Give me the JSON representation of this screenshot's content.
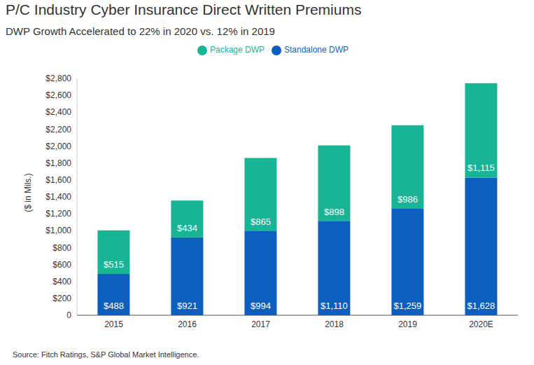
{
  "chart_data": {
    "type": "bar",
    "title": "P/C Industry Cyber Insurance Direct Written Premiums",
    "subtitle": "DWP Growth Accelerated to 22% in 2020 vs. 12% in 2019",
    "y_label": "($ in Mils.)",
    "source": "Source: Fitch Ratings, S&P Global Market Intelligence.",
    "categories": [
      "2015",
      "2016",
      "2017",
      "2018",
      "2019",
      "2020E"
    ],
    "series": [
      {
        "name": "Standalone DWP",
        "color": "#0d5fbf",
        "values": [
          488,
          921,
          994,
          1110,
          1259,
          1628
        ],
        "value_labels": [
          "$488",
          "$921",
          "$994",
          "$1,110",
          "$1,259",
          "$1,628"
        ]
      },
      {
        "name": "Package DWP",
        "color": "#17b596",
        "values": [
          515,
          434,
          865,
          898,
          986,
          1115
        ],
        "value_labels": [
          "$515",
          "$434",
          "$865",
          "$898",
          "$986",
          "$1,115"
        ]
      }
    ],
    "stacked": true,
    "data_labels": true,
    "legend": "top",
    "grid": false,
    "ylim": [
      0,
      2800
    ],
    "yticks": [
      0,
      {
        "value": 200,
        "label": "$200"
      },
      {
        "value": 400,
        "label": "$400"
      },
      {
        "value": 600,
        "label": "$600"
      },
      {
        "value": 800,
        "label": "$800"
      },
      {
        "value": 1000,
        "label": "$1,000"
      },
      {
        "value": 1200,
        "label": "$1,200"
      },
      {
        "value": 1400,
        "label": "$1,400"
      },
      {
        "value": 1600,
        "label": "$1,600"
      },
      {
        "value": 1800,
        "label": "$1,800"
      },
      {
        "value": 2000,
        "label": "$2,000"
      },
      {
        "value": 2200,
        "label": "$2,200"
      },
      {
        "value": 2400,
        "label": "$2,400"
      },
      {
        "value": 2600,
        "label": "$2,600"
      },
      {
        "value": 2800,
        "label": "$2,800"
      }
    ]
  }
}
